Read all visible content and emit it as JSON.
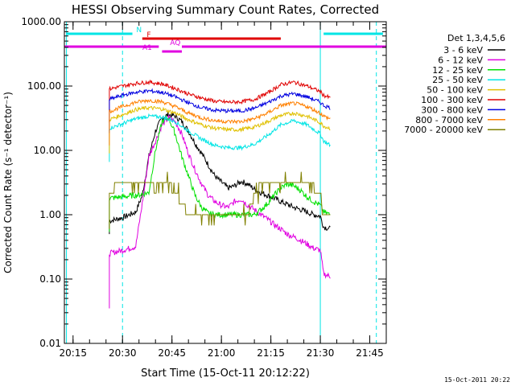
{
  "chart_data": {
    "type": "line",
    "title": "HESSI Observing Summary Count Rates, Corrected",
    "xlabel": "Start Time (15-Oct-11 20:12:22)",
    "ylabel": "Corrected Count Rate (s⁻¹ detector⁻¹)",
    "y_scale": "log",
    "xlim": [
      "20:12:22",
      "21:50:00"
    ],
    "ylim": [
      0.01,
      1000
    ],
    "x_ticks": [
      "20:15",
      "20:30",
      "20:45",
      "21:00",
      "21:15",
      "21:30",
      "21:45"
    ],
    "y_ticks": [
      "1000.00",
      "100.00",
      "10.00",
      "1.00",
      "0.10",
      "0.01"
    ],
    "legend_title": "Det 1,3,4,5,6",
    "legend_position": "right",
    "footer": "15-Oct-2011 20:22",
    "flags": [
      {
        "label": "N",
        "color": "#00e5e5",
        "segments": [
          [
            "20:13:00",
            "20:33:00"
          ],
          [
            "21:31:00",
            "21:49:00"
          ]
        ]
      },
      {
        "label": "F",
        "color": "#e00000",
        "segments": [
          [
            "20:36:00",
            "21:18:00"
          ]
        ]
      },
      {
        "label": "AQ",
        "color": "#e000e0",
        "segments": [
          [
            "20:12:22",
            "20:41:00"
          ],
          [
            "20:48:00",
            "21:50:00"
          ]
        ]
      },
      {
        "label": "A1",
        "color": "#e000e0",
        "segments": [
          [
            "20:42:00",
            "20:48:00"
          ]
        ]
      }
    ],
    "vlines": [
      {
        "time": "20:13:00",
        "style": "solid",
        "color": "#00e5e5"
      },
      {
        "time": "20:30:00",
        "style": "dashed",
        "color": "#00e5e5"
      },
      {
        "time": "21:30:00",
        "style": "solid",
        "color": "#00e5e5"
      },
      {
        "time": "21:47:00",
        "style": "dashed",
        "color": "#00e5e5"
      }
    ],
    "series": [
      {
        "name": "3 - 6 keV",
        "color": "#000000",
        "x": [
          "20:26:00",
          "20:30:00",
          "20:34:00",
          "20:36:00",
          "20:38:00",
          "20:40:00",
          "20:42:00",
          "20:44:00",
          "20:46:00",
          "20:48:00",
          "20:50:00",
          "20:52:00",
          "20:54:00",
          "20:56:00",
          "20:58:00",
          "21:00:00",
          "21:02:00",
          "21:04:00",
          "21:06:00",
          "21:08:00",
          "21:10:00",
          "21:12:00",
          "21:14:00",
          "21:16:00",
          "21:18:00",
          "21:20:00",
          "21:22:00",
          "21:24:00",
          "21:26:00",
          "21:28:00",
          "21:30:00",
          "21:31:00",
          "21:33:00"
        ],
        "values": [
          0.8,
          0.9,
          1.1,
          2.0,
          8,
          20,
          32,
          36,
          34,
          28,
          20,
          13,
          9,
          6,
          4,
          3.2,
          2.6,
          2.8,
          3.3,
          3.0,
          2.5,
          2.2,
          2.0,
          1.8,
          1.6,
          1.45,
          1.3,
          1.2,
          1.1,
          1.0,
          0.95,
          0.65,
          0.6
        ]
      },
      {
        "name": "6 - 12 keV",
        "color": "#e000e0",
        "x": [
          "20:26:00",
          "20:30:00",
          "20:34:00",
          "20:36:00",
          "20:38:00",
          "20:40:00",
          "20:42:00",
          "20:44:00",
          "20:46:00",
          "20:48:00",
          "20:50:00",
          "20:52:00",
          "20:54:00",
          "20:56:00",
          "20:58:00",
          "21:00:00",
          "21:02:00",
          "21:04:00",
          "21:06:00",
          "21:08:00",
          "21:10:00",
          "21:12:00",
          "21:14:00",
          "21:16:00",
          "21:18:00",
          "21:20:00",
          "21:22:00",
          "21:24:00",
          "21:26:00",
          "21:28:00",
          "21:30:00",
          "21:31:00",
          "21:33:00"
        ],
        "values": [
          0.25,
          0.28,
          0.32,
          1.5,
          8,
          14,
          25,
          32,
          28,
          18,
          9,
          5,
          3,
          2,
          1.6,
          1.4,
          1.3,
          1.6,
          1.75,
          1.4,
          1.2,
          1.0,
          0.85,
          0.7,
          0.6,
          0.5,
          0.45,
          0.4,
          0.35,
          0.3,
          0.28,
          0.12,
          0.11
        ]
      },
      {
        "name": "12 - 25 keV",
        "color": "#00e000",
        "x": [
          "20:26:00",
          "20:30:00",
          "20:34:00",
          "20:36:00",
          "20:38:00",
          "20:40:00",
          "20:42:00",
          "20:44:00",
          "20:46:00",
          "20:48:00",
          "20:50:00",
          "20:52:00",
          "20:54:00",
          "20:56:00",
          "20:58:00",
          "21:00:00",
          "21:02:00",
          "21:04:00",
          "21:06:00",
          "21:08:00",
          "21:10:00",
          "21:12:00",
          "21:14:00",
          "21:16:00",
          "21:18:00",
          "21:20:00",
          "21:22:00",
          "21:24:00",
          "21:26:00",
          "21:28:00",
          "21:30:00",
          "21:31:00",
          "21:33:00"
        ],
        "values": [
          1.8,
          1.9,
          2.0,
          2.1,
          2.2,
          10,
          28,
          32,
          18,
          8,
          4,
          2,
          1.3,
          1.05,
          1.0,
          1.0,
          1.0,
          1.0,
          1.0,
          1.0,
          1.0,
          1.2,
          1.5,
          2.0,
          2.6,
          3.0,
          2.8,
          2.4,
          1.9,
          1.6,
          1.4,
          1.1,
          1.0
        ]
      },
      {
        "name": "25 - 50 keV",
        "color": "#00e5e5",
        "x": [
          "20:26:00",
          "20:30:00",
          "20:34:00",
          "20:38:00",
          "20:42:00",
          "20:46:00",
          "20:50:00",
          "20:54:00",
          "20:58:00",
          "21:02:00",
          "21:06:00",
          "21:10:00",
          "21:14:00",
          "21:18:00",
          "21:22:00",
          "21:26:00",
          "21:30:00",
          "21:31:00",
          "21:33:00"
        ],
        "values": [
          22,
          26,
          31,
          34,
          33,
          28,
          20,
          15,
          12,
          11,
          11,
          12.5,
          17,
          25,
          29,
          25,
          18,
          14,
          12
        ]
      },
      {
        "name": "50 - 100 keV",
        "color": "#e0c000",
        "x": [
          "20:26:00",
          "20:30:00",
          "20:34:00",
          "20:38:00",
          "20:42:00",
          "20:46:00",
          "20:50:00",
          "20:54:00",
          "20:58:00",
          "21:02:00",
          "21:06:00",
          "21:10:00",
          "21:14:00",
          "21:18:00",
          "21:22:00",
          "21:26:00",
          "21:30:00",
          "21:31:00",
          "21:33:00"
        ],
        "values": [
          30,
          36,
          43,
          46,
          44,
          38,
          30,
          25,
          22,
          21,
          21,
          23,
          28,
          35,
          38,
          34,
          27,
          24,
          22
        ]
      },
      {
        "name": "100 - 300 keV",
        "color": "#e00000",
        "x": [
          "20:26:00",
          "20:30:00",
          "20:34:00",
          "20:38:00",
          "20:42:00",
          "20:46:00",
          "20:50:00",
          "20:54:00",
          "20:58:00",
          "21:02:00",
          "21:06:00",
          "21:10:00",
          "21:14:00",
          "21:18:00",
          "21:22:00",
          "21:26:00",
          "21:30:00",
          "21:31:00",
          "21:33:00"
        ],
        "values": [
          90,
          100,
          110,
          115,
          108,
          92,
          75,
          65,
          58,
          56,
          57,
          62,
          78,
          105,
          115,
          100,
          82,
          72,
          65
        ]
      },
      {
        "name": "300 - 800 keV",
        "color": "#0000e0",
        "x": [
          "20:26:00",
          "20:30:00",
          "20:34:00",
          "20:38:00",
          "20:42:00",
          "20:46:00",
          "20:50:00",
          "20:54:00",
          "20:58:00",
          "21:02:00",
          "21:06:00",
          "21:10:00",
          "21:14:00",
          "21:18:00",
          "21:22:00",
          "21:26:00",
          "21:30:00",
          "21:31:00",
          "21:33:00"
        ],
        "values": [
          62,
          72,
          80,
          84,
          80,
          68,
          55,
          46,
          42,
          41,
          41,
          45,
          55,
          70,
          76,
          68,
          56,
          50,
          46
        ]
      },
      {
        "name": "800 - 7000 keV",
        "color": "#ff8000",
        "x": [
          "20:26:00",
          "20:30:00",
          "20:34:00",
          "20:38:00",
          "20:42:00",
          "20:46:00",
          "20:50:00",
          "20:54:00",
          "20:58:00",
          "21:02:00",
          "21:06:00",
          "21:10:00",
          "21:14:00",
          "21:18:00",
          "21:22:00",
          "21:26:00",
          "21:30:00",
          "21:31:00",
          "21:33:00"
        ],
        "values": [
          40,
          48,
          56,
          60,
          57,
          48,
          38,
          32,
          29,
          28,
          28,
          31,
          38,
          50,
          54,
          48,
          38,
          34,
          31
        ]
      },
      {
        "name": "7000 - 20000 keV",
        "color": "#808000",
        "x": [
          "20:26:00",
          "20:28:00",
          "20:30:00",
          "20:34:00",
          "20:38:00",
          "20:40:00",
          "20:42:00",
          "20:44:00",
          "20:46:00",
          "20:48:00",
          "20:50:00",
          "20:52:00",
          "21:05:00",
          "21:08:00",
          "21:10:00",
          "21:12:00",
          "21:14:00",
          "21:16:00",
          "21:20:00",
          "21:24:00",
          "21:27:00",
          "21:30:00",
          "21:31:00",
          "21:33:00"
        ],
        "values": [
          2.0,
          2.8,
          3.2,
          3.0,
          3.0,
          2.5,
          3.5,
          3.0,
          2.2,
          1.5,
          1.0,
          1.0,
          1.0,
          1.0,
          2.0,
          3.0,
          3.5,
          3.0,
          3.2,
          3.5,
          3.0,
          2.0,
          1.0,
          1.0
        ]
      }
    ]
  }
}
